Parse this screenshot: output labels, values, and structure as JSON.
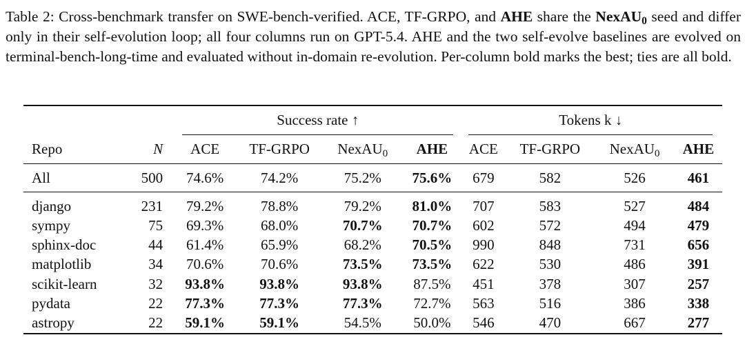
{
  "caption": {
    "part1": "Table 2: Cross-benchmark transfer on SWE-bench-verified. ACE, TF-GRPO, and ",
    "ahe_bold": "AHE",
    "part2": " share the ",
    "nexau_bold": "NexAU",
    "nexau_sub": "0",
    "part3": " seed and differ only in their self-evolution loop; all four columns run on GPT-5.4. AHE and the two self-evolve baselines are evolved on terminal-bench-long-time and evaluated without in-domain re-evolution. Per-column bold marks the best; ties are all bold."
  },
  "table": {
    "group_headers": {
      "success": "Success rate ↑",
      "tokens": "Tokens k ↓"
    },
    "columns": {
      "repo": "Repo",
      "n": "N",
      "ace": "ACE",
      "tfgrpo": "TF-GRPO",
      "nexau": "NexAU",
      "nexau_sub": "0",
      "ahe": "AHE"
    },
    "all_row": {
      "repo": "All",
      "n": "500",
      "sr": [
        "74.6%",
        "74.2%",
        "75.2%",
        "75.6%"
      ],
      "tok": [
        "679",
        "582",
        "526",
        "461"
      ],
      "sr_bold": [
        false,
        false,
        false,
        true
      ],
      "tok_bold": [
        false,
        false,
        false,
        true
      ]
    },
    "rows": [
      {
        "repo": "django",
        "n": "231",
        "sr": [
          "79.2%",
          "78.8%",
          "79.2%",
          "81.0%"
        ],
        "tok": [
          "707",
          "583",
          "527",
          "484"
        ],
        "sr_bold": [
          false,
          false,
          false,
          true
        ],
        "tok_bold": [
          false,
          false,
          false,
          true
        ]
      },
      {
        "repo": "sympy",
        "n": "75",
        "sr": [
          "69.3%",
          "68.0%",
          "70.7%",
          "70.7%"
        ],
        "tok": [
          "602",
          "572",
          "494",
          "479"
        ],
        "sr_bold": [
          false,
          false,
          true,
          true
        ],
        "tok_bold": [
          false,
          false,
          false,
          true
        ]
      },
      {
        "repo": "sphinx-doc",
        "n": "44",
        "sr": [
          "61.4%",
          "65.9%",
          "68.2%",
          "70.5%"
        ],
        "tok": [
          "990",
          "848",
          "731",
          "656"
        ],
        "sr_bold": [
          false,
          false,
          false,
          true
        ],
        "tok_bold": [
          false,
          false,
          false,
          true
        ]
      },
      {
        "repo": "matplotlib",
        "n": "34",
        "sr": [
          "70.6%",
          "70.6%",
          "73.5%",
          "73.5%"
        ],
        "tok": [
          "622",
          "530",
          "486",
          "391"
        ],
        "sr_bold": [
          false,
          false,
          true,
          true
        ],
        "tok_bold": [
          false,
          false,
          false,
          true
        ]
      },
      {
        "repo": "scikit-learn",
        "n": "32",
        "sr": [
          "93.8%",
          "93.8%",
          "93.8%",
          "87.5%"
        ],
        "tok": [
          "451",
          "378",
          "307",
          "257"
        ],
        "sr_bold": [
          true,
          true,
          true,
          false
        ],
        "tok_bold": [
          false,
          false,
          false,
          true
        ]
      },
      {
        "repo": "pydata",
        "n": "22",
        "sr": [
          "77.3%",
          "77.3%",
          "77.3%",
          "72.7%"
        ],
        "tok": [
          "563",
          "516",
          "386",
          "338"
        ],
        "sr_bold": [
          true,
          true,
          true,
          false
        ],
        "tok_bold": [
          false,
          false,
          false,
          true
        ]
      },
      {
        "repo": "astropy",
        "n": "22",
        "sr": [
          "59.1%",
          "59.1%",
          "54.5%",
          "50.0%"
        ],
        "tok": [
          "546",
          "470",
          "667",
          "277"
        ],
        "sr_bold": [
          true,
          true,
          false,
          false
        ],
        "tok_bold": [
          false,
          false,
          false,
          true
        ]
      }
    ]
  }
}
